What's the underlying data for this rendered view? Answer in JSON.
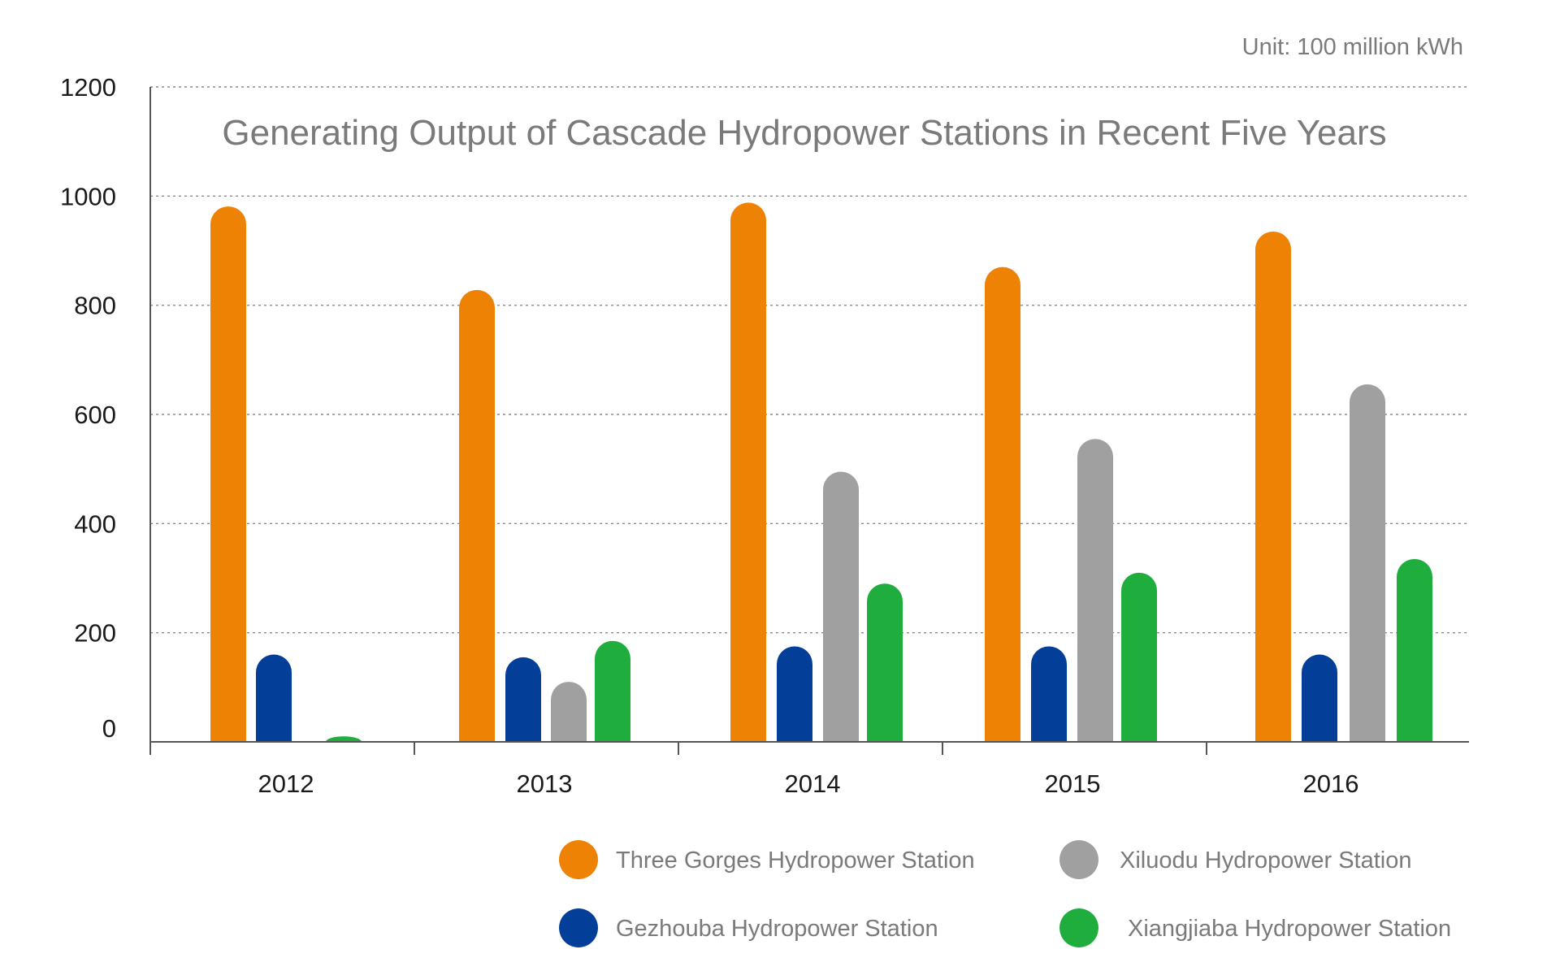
{
  "chart_data": {
    "type": "bar",
    "title": "Generating Output of Cascade Hydropower Stations in Recent Five Years",
    "unit_label": "Unit: 100 million kWh",
    "xlabel": "",
    "ylabel": "",
    "ylim": [
      0,
      1200
    ],
    "yticks": [
      "0",
      "200",
      "400",
      "600",
      "800",
      "1000",
      "1200"
    ],
    "grid": "horizontal-dotted",
    "legend_position": "bottom-right",
    "categories": [
      "2012",
      "2013",
      "2014",
      "2015",
      "2016"
    ],
    "series": [
      {
        "name": "Three Gorges Hydropower Station",
        "color": "#ee8204",
        "values": [
          981,
          828,
          988,
          870,
          935
        ]
      },
      {
        "name": "Gezhouba Hydropower Station",
        "color": "#033f98",
        "values": [
          160,
          155,
          175,
          175,
          160
        ]
      },
      {
        "name": "Xiluodu Hydropower Station",
        "color": "#a0a0a0",
        "values": [
          null,
          110,
          495,
          555,
          655
        ]
      },
      {
        "name": "Xiangjiaba Hydropower Station",
        "color": "#1fae3e",
        "values": [
          10,
          185,
          290,
          310,
          335
        ]
      }
    ]
  }
}
